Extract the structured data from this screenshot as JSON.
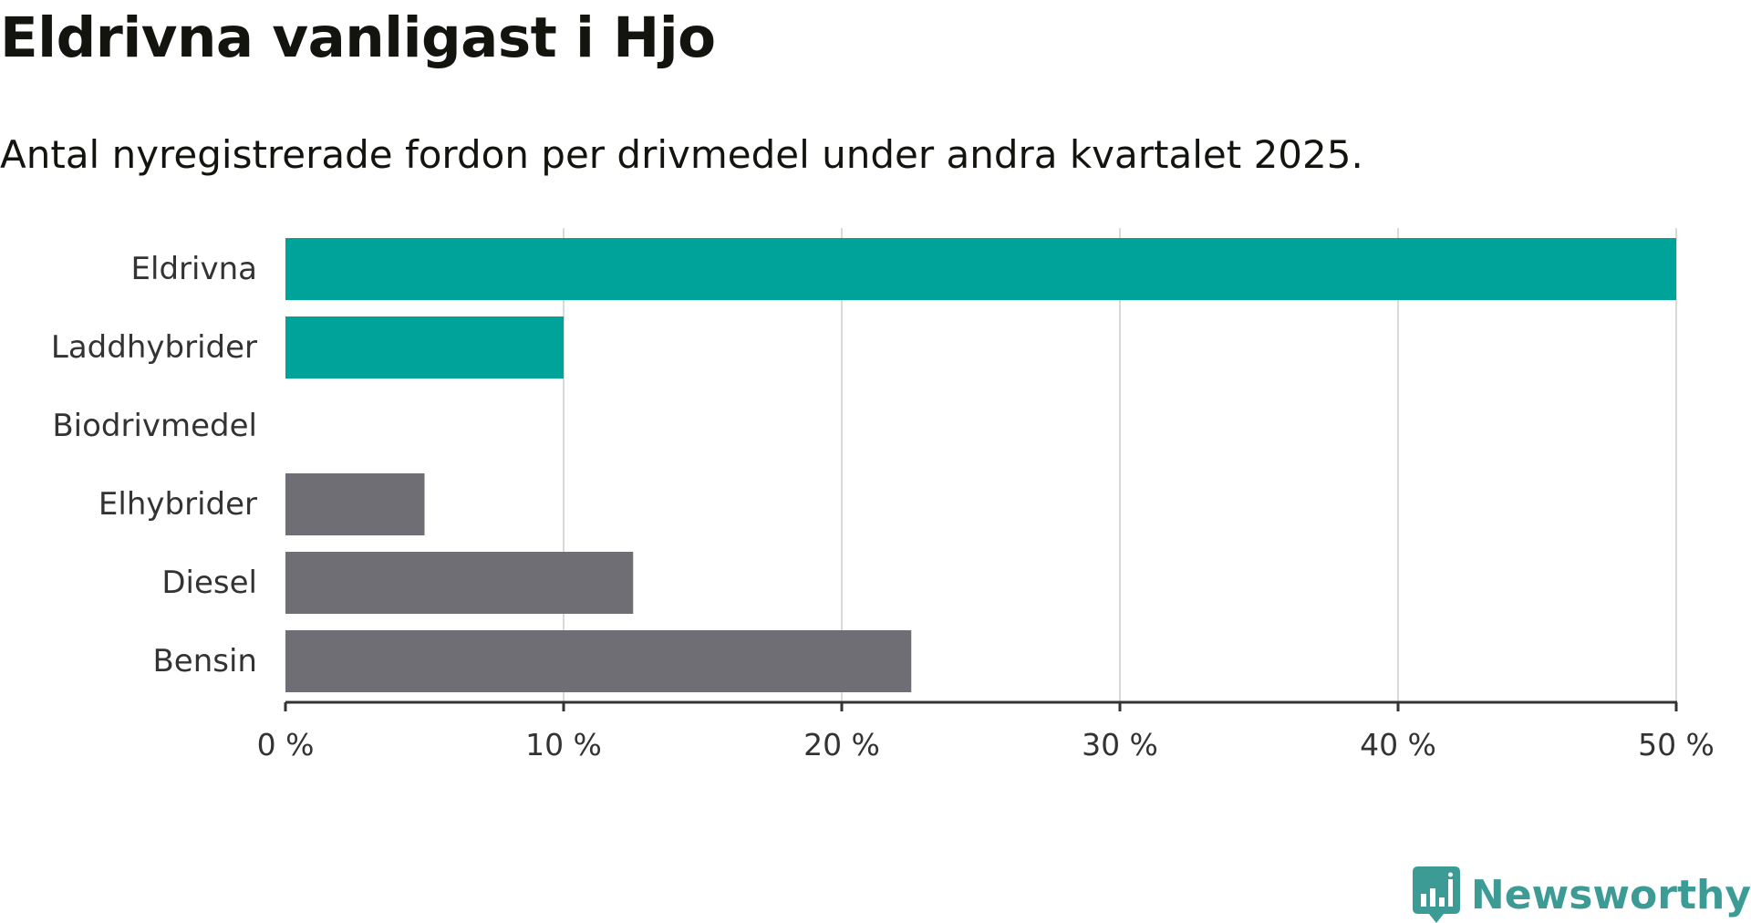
{
  "chart_data": {
    "type": "bar",
    "orientation": "horizontal",
    "title": "Eldrivna vanligast i Hjo",
    "subtitle": "Antal nyregistrerade fordon per drivmedel under andra kvartalet 2025.",
    "categories": [
      "Eldrivna",
      "Laddhybrider",
      "Biodrivmedel",
      "Elhybrider",
      "Diesel",
      "Bensin"
    ],
    "values": [
      50,
      10,
      0,
      5,
      12.5,
      22.5
    ],
    "value_unit": "%",
    "bar_colors": [
      "#00a39a",
      "#00a39a",
      "#00a39a",
      "#6f6e74",
      "#6f6e74",
      "#6f6e74"
    ],
    "xlim": [
      0,
      50
    ],
    "xticks": [
      0,
      10,
      20,
      30,
      40,
      50
    ],
    "xtick_labels": [
      "0 %",
      "10 %",
      "20 %",
      "30 %",
      "40 %",
      "50 %"
    ],
    "grid": "vertical",
    "legend": "none"
  },
  "brand": {
    "name": "Newsworthy",
    "color": "#3d9b95",
    "icon": "newsworthy-logo-icon"
  },
  "colors": {
    "text": "#14140f",
    "label": "#333333",
    "grid": "#d9d9d9",
    "axis": "#333333"
  }
}
